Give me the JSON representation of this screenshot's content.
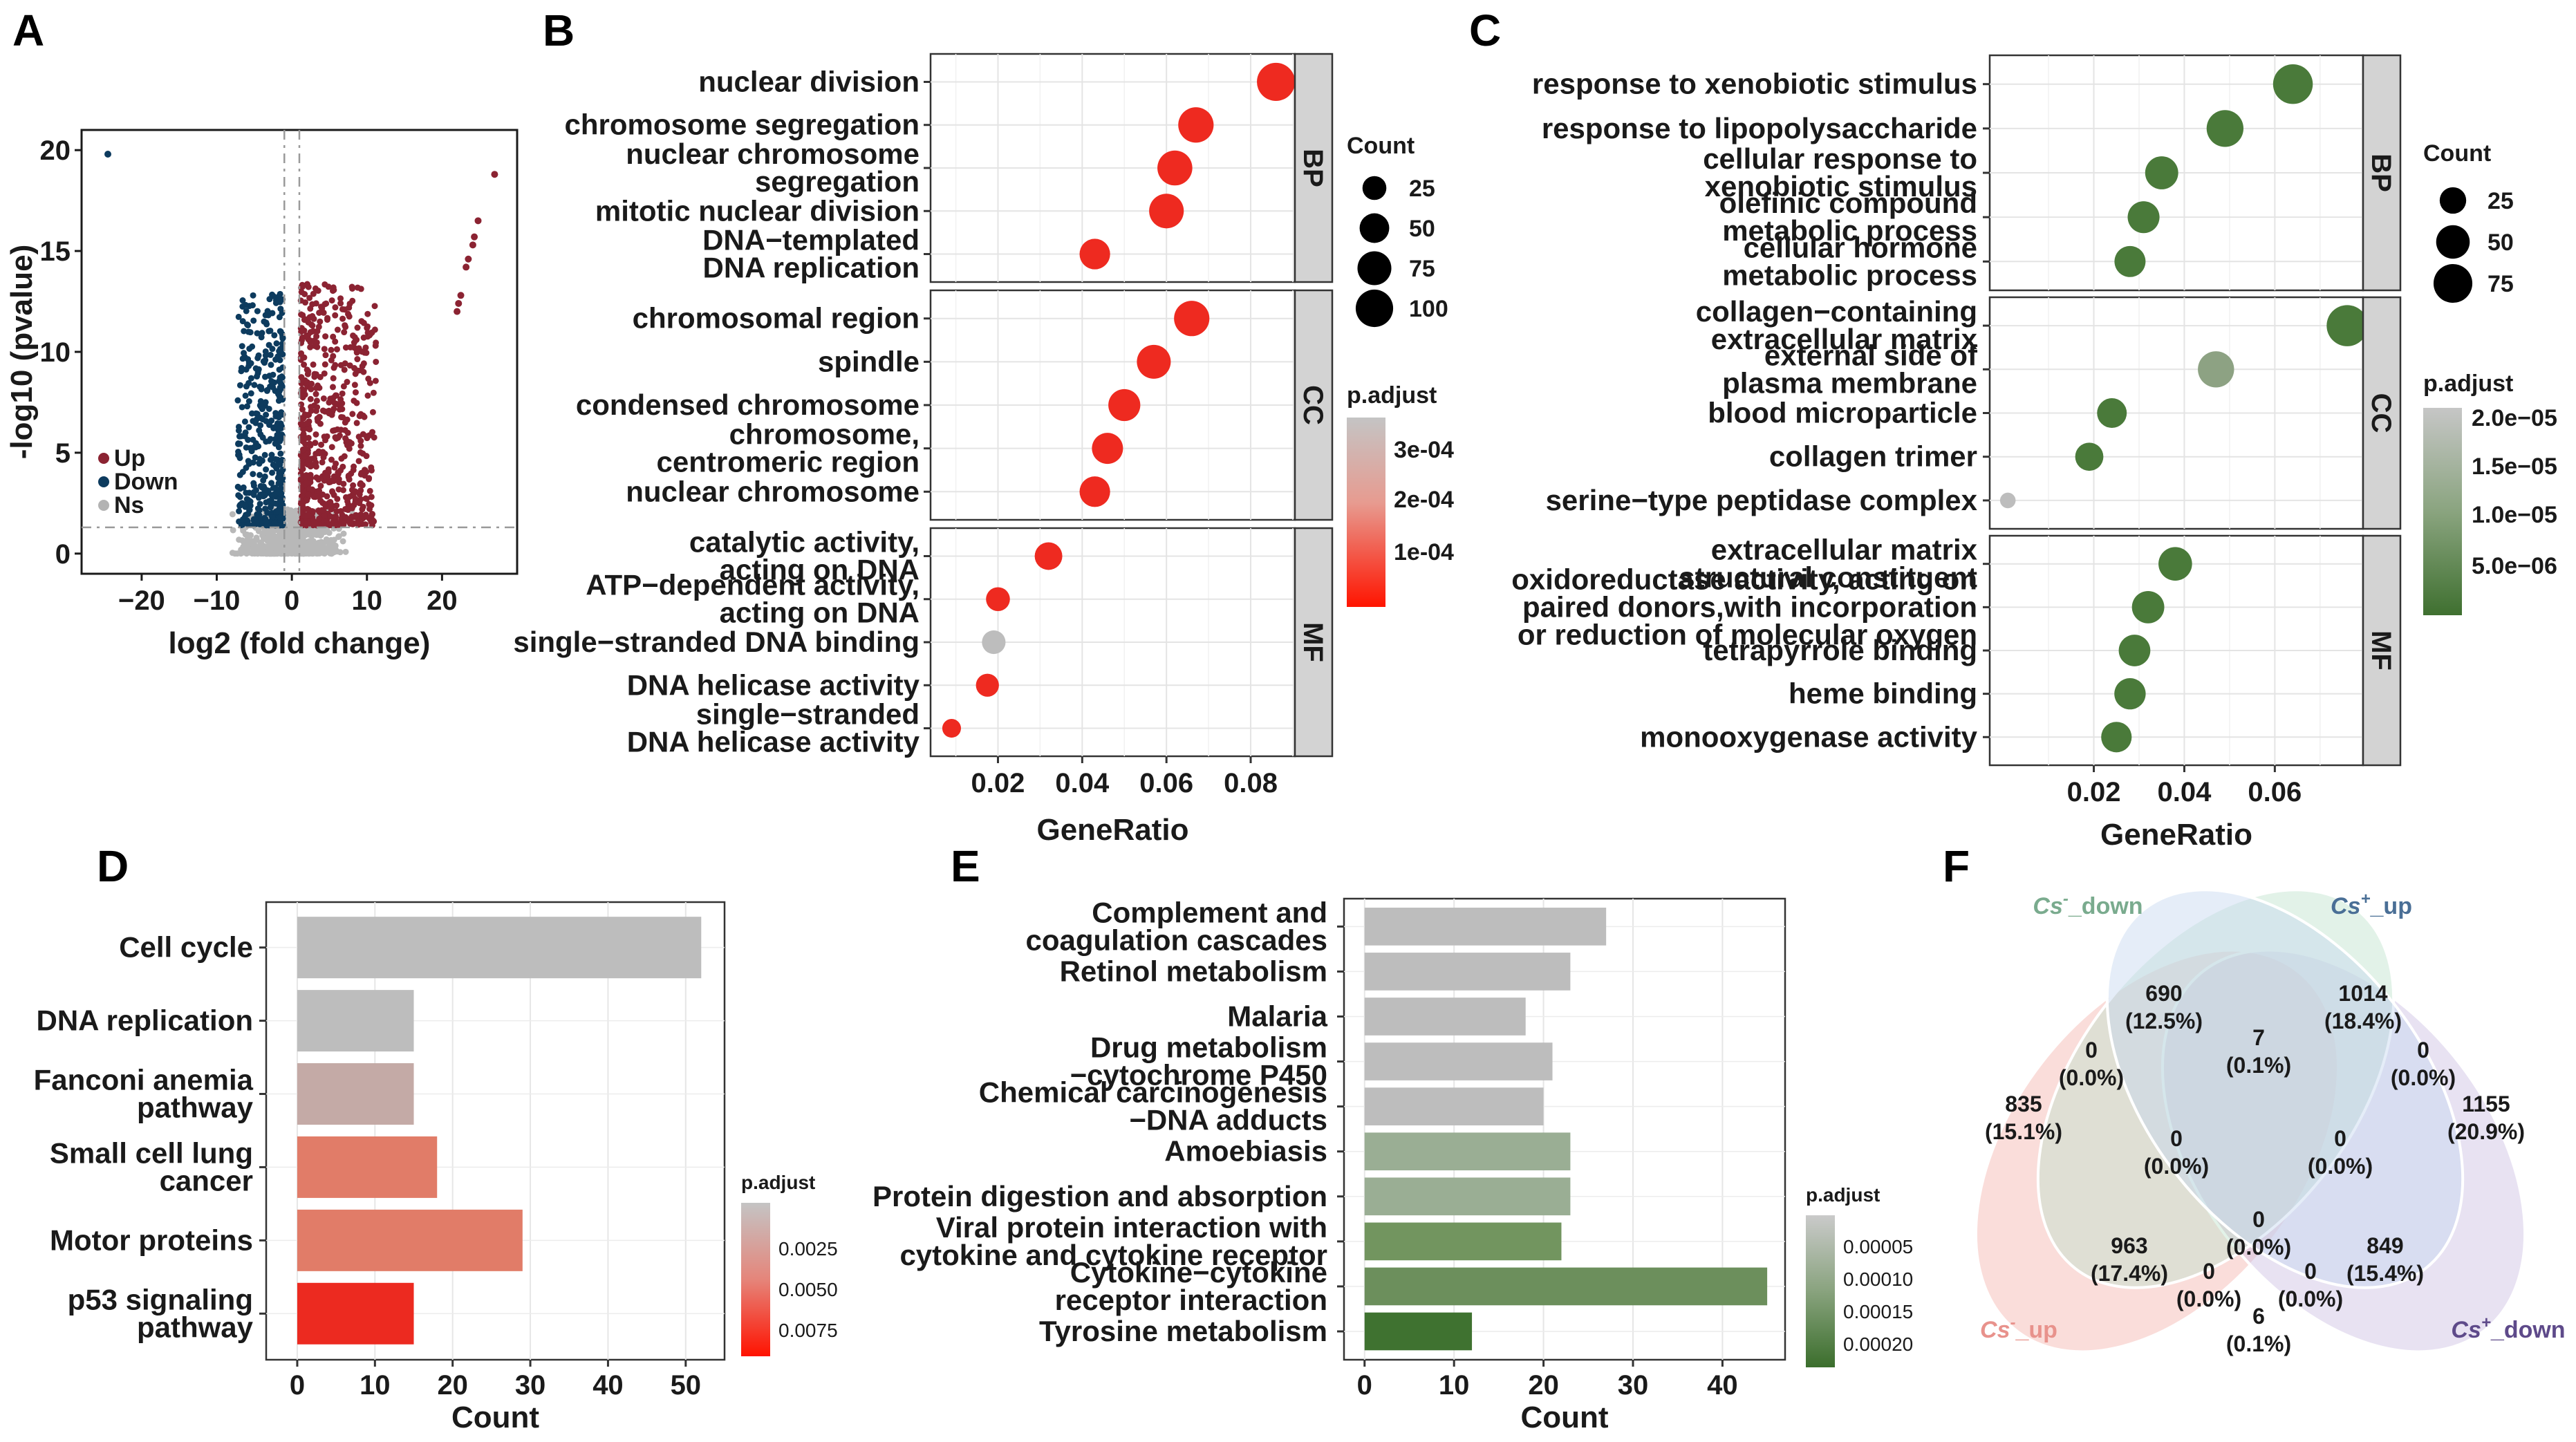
{
  "panels": {
    "a": "A",
    "b": "B",
    "c": "C",
    "d": "D",
    "e": "E",
    "f": "F"
  },
  "chart_data": [
    {
      "id": "volcano",
      "type": "scatter",
      "xlabel": "log2 (fold change)",
      "ylabel": "-log10 (pvalue)",
      "xlim": [
        -28,
        30
      ],
      "ylim": [
        -1,
        21
      ],
      "xticks": [
        "-20",
        "-10",
        "0",
        "10",
        "20"
      ],
      "yticks": [
        "0",
        "5",
        "10",
        "15",
        "20"
      ],
      "legend": [
        {
          "label": "Up",
          "color": "#8b2332"
        },
        {
          "label": "Down",
          "color": "#0d3b5e"
        },
        {
          "label": "Ns",
          "color": "#b3b3b3"
        }
      ],
      "vlines": [
        -1,
        1
      ],
      "hline": 1.3,
      "outliers_up": [
        [
          27,
          18.8
        ],
        [
          24.8,
          16.5
        ],
        [
          24.3,
          15.7
        ],
        [
          24.1,
          15.3
        ],
        [
          23.5,
          14.6
        ],
        [
          23.2,
          14.2
        ],
        [
          22.5,
          12.8
        ],
        [
          22.2,
          12.4
        ],
        [
          22.0,
          12.0
        ]
      ],
      "outliers_down": [
        [
          -24.5,
          19.8
        ]
      ]
    },
    {
      "id": "go_b",
      "type": "scatter",
      "xlabel": "GeneRatio",
      "xlim": [
        0.004,
        0.0905
      ],
      "xticks": [
        0.02,
        0.04,
        0.06,
        0.08
      ],
      "xtick_labels": [
        "0.02",
        "0.04",
        "0.06",
        "0.08"
      ],
      "size_legend": {
        "title": "Count",
        "values": [
          25,
          50,
          75,
          100
        ]
      },
      "color_legend": {
        "title": "p.adjust",
        "ticks": [
          "3e-04",
          "2e-04",
          "1e-04"
        ]
      },
      "facets": [
        {
          "name": "BP",
          "terms": [
            {
              "lines": [
                "nuclear division"
              ],
              "ratio": 0.086,
              "count": 105,
              "color": "#ee2a20"
            },
            {
              "lines": [
                "chromosome segregation"
              ],
              "ratio": 0.067,
              "count": 85,
              "color": "#ee2a20"
            },
            {
              "lines": [
                "nuclear chromosome",
                "segregation"
              ],
              "ratio": 0.062,
              "count": 82,
              "color": "#ee2a20"
            },
            {
              "lines": [
                "mitotic nuclear division"
              ],
              "ratio": 0.06,
              "count": 80,
              "color": "#ee2a20"
            },
            {
              "lines": [
                "DNA−templated",
                "DNA replication"
              ],
              "ratio": 0.043,
              "count": 55,
              "color": "#ee2a20"
            }
          ]
        },
        {
          "name": "CC",
          "terms": [
            {
              "lines": [
                "chromosomal region"
              ],
              "ratio": 0.066,
              "count": 85,
              "color": "#ee2a20"
            },
            {
              "lines": [
                "spindle"
              ],
              "ratio": 0.057,
              "count": 75,
              "color": "#ee2a20"
            },
            {
              "lines": [
                "condensed chromosome"
              ],
              "ratio": 0.05,
              "count": 63,
              "color": "#ee2a20"
            },
            {
              "lines": [
                "chromosome,",
                "centromeric region"
              ],
              "ratio": 0.046,
              "count": 58,
              "color": "#ee2a20"
            },
            {
              "lines": [
                "nuclear chromosome"
              ],
              "ratio": 0.043,
              "count": 55,
              "color": "#ee2a20"
            }
          ]
        },
        {
          "name": "MF",
          "terms": [
            {
              "lines": [
                "catalytic activity,",
                "acting on DNA"
              ],
              "ratio": 0.032,
              "count": 40,
              "color": "#ee2a20"
            },
            {
              "lines": [
                "ATP−dependent activity,",
                "acting on DNA"
              ],
              "ratio": 0.02,
              "count": 25,
              "color": "#ee2a20"
            },
            {
              "lines": [
                "single−stranded DNA binding"
              ],
              "ratio": 0.019,
              "count": 24,
              "color": "#bdbdbd"
            },
            {
              "lines": [
                "DNA helicase activity"
              ],
              "ratio": 0.0175,
              "count": 22,
              "color": "#ee2a20"
            },
            {
              "lines": [
                "single−stranded",
                "DNA helicase activity"
              ],
              "ratio": 0.009,
              "count": 11,
              "color": "#ee2a20"
            }
          ]
        }
      ]
    },
    {
      "id": "go_c",
      "type": "scatter",
      "xlabel": "GeneRatio",
      "xlim": [
        -0.003,
        0.0795
      ],
      "xticks": [
        0.02,
        0.04,
        0.06
      ],
      "xtick_labels": [
        "0.02",
        "0.04",
        "0.06"
      ],
      "size_legend": {
        "title": "Count",
        "values": [
          25,
          50,
          75
        ]
      },
      "color_legend": {
        "title": "p.adjust",
        "ticks": [
          "2.0e−05",
          "1.5e−05",
          "1.0e−05",
          "5.0e−06"
        ]
      },
      "facets": [
        {
          "name": "BP",
          "terms": [
            {
              "lines": [
                "response to xenobiotic stimulus"
              ],
              "ratio": 0.064,
              "count": 80,
              "color": "#4a7a3a"
            },
            {
              "lines": [
                "response to lipopolysaccharide"
              ],
              "ratio": 0.049,
              "count": 65,
              "color": "#4a7a3a"
            },
            {
              "lines": [
                "cellular response to",
                "xenobiotic stimulus"
              ],
              "ratio": 0.035,
              "count": 48,
              "color": "#4a7a3a"
            },
            {
              "lines": [
                "olefinic compound",
                "metabolic process"
              ],
              "ratio": 0.031,
              "count": 43,
              "color": "#4a7a3a"
            },
            {
              "lines": [
                "cellular hormone",
                "metabolic process"
              ],
              "ratio": 0.028,
              "count": 40,
              "color": "#4a7a3a"
            }
          ]
        },
        {
          "name": "CC",
          "terms": [
            {
              "lines": [
                "collagen−containing",
                "extracellular matrix"
              ],
              "ratio": 0.076,
              "count": 88,
              "color": "#4a7a3a"
            },
            {
              "lines": [
                "external side of",
                "plasma membrane"
              ],
              "ratio": 0.047,
              "count": 62,
              "color": "#8da283"
            },
            {
              "lines": [
                "blood microparticle"
              ],
              "ratio": 0.024,
              "count": 35,
              "color": "#4a7a3a"
            },
            {
              "lines": [
                "collagen trimer"
              ],
              "ratio": 0.019,
              "count": 30,
              "color": "#4a7a3a"
            },
            {
              "lines": [
                "serine−type peptidase complex"
              ],
              "ratio": 0.001,
              "count": 6,
              "color": "#bdbdbd"
            }
          ]
        },
        {
          "name": "MF",
          "terms": [
            {
              "lines": [
                "extracellular matrix",
                "structural constituent"
              ],
              "ratio": 0.038,
              "count": 50,
              "color": "#4a7a3a"
            },
            {
              "lines": [
                "oxidoreductase activity, acting on",
                "paired donors,with incorporation",
                "or reduction of molecular oxygen"
              ],
              "ratio": 0.032,
              "count": 45,
              "color": "#4a7a3a"
            },
            {
              "lines": [
                "tetrapyrrole binding"
              ],
              "ratio": 0.029,
              "count": 42,
              "color": "#4a7a3a"
            },
            {
              "lines": [
                "heme binding"
              ],
              "ratio": 0.028,
              "count": 41,
              "color": "#4a7a3a"
            },
            {
              "lines": [
                "monooxygenase activity"
              ],
              "ratio": 0.025,
              "count": 38,
              "color": "#4a7a3a"
            }
          ]
        }
      ]
    },
    {
      "id": "kegg_d",
      "type": "bar",
      "orientation": "horizontal",
      "xlabel": "Count",
      "xlim": [
        -4,
        55
      ],
      "xticks": [
        0,
        10,
        20,
        30,
        40,
        50
      ],
      "color_legend": {
        "title": "p.adjust",
        "ticks": [
          "0.0025",
          "0.0050",
          "0.0075"
        ]
      },
      "bars": [
        {
          "lines": [
            "Cell cycle"
          ],
          "value": 52,
          "color": "#bdbdbd"
        },
        {
          "lines": [
            "DNA replication"
          ],
          "value": 15,
          "color": "#bdbdbd"
        },
        {
          "lines": [
            "Fanconi anemia",
            "pathway"
          ],
          "value": 15,
          "color": "#c4aaa6"
        },
        {
          "lines": [
            "Small cell lung",
            "cancer"
          ],
          "value": 18,
          "color": "#e17c68"
        },
        {
          "lines": [
            "Motor proteins"
          ],
          "value": 29,
          "color": "#e17c68"
        },
        {
          "lines": [
            "p53 signaling",
            "pathway"
          ],
          "value": 15,
          "color": "#ec2a20"
        }
      ]
    },
    {
      "id": "kegg_e",
      "type": "bar",
      "orientation": "horizontal",
      "xlabel": "Count",
      "xlim": [
        -2.3,
        47
      ],
      "xticks": [
        0,
        10,
        20,
        30,
        40
      ],
      "color_legend": {
        "title": "p.adjust",
        "ticks": [
          "0.00005",
          "0.00010",
          "0.00015",
          "0.00020"
        ]
      },
      "bars": [
        {
          "lines": [
            "Complement and",
            "coagulation cascades"
          ],
          "value": 27,
          "color": "#bdbdbd"
        },
        {
          "lines": [
            "Retinol metabolism"
          ],
          "value": 23,
          "color": "#bdbdbd"
        },
        {
          "lines": [
            "Malaria"
          ],
          "value": 18,
          "color": "#bdbdbd"
        },
        {
          "lines": [
            "Drug metabolism",
            "−cytochrome P450"
          ],
          "value": 21,
          "color": "#bdbdbd"
        },
        {
          "lines": [
            "Chemical carcinogenesis",
            "−DNA adducts"
          ],
          "value": 20,
          "color": "#bdbdbd"
        },
        {
          "lines": [
            "Amoebiasis"
          ],
          "value": 23,
          "color": "#9aae94"
        },
        {
          "lines": [
            "Protein digestion and absorption"
          ],
          "value": 23,
          "color": "#9aae94"
        },
        {
          "lines": [
            "Viral protein interaction with",
            "cytokine and cytokine receptor"
          ],
          "value": 22,
          "color": "#72955f"
        },
        {
          "lines": [
            "Cytokine−cytokine",
            "receptor interaction"
          ],
          "value": 45,
          "color": "#6c8f5c"
        },
        {
          "lines": [
            "Tyrosine metabolism"
          ],
          "value": 12,
          "color": "#3f7230"
        }
      ]
    },
    {
      "id": "venn",
      "type": "venn",
      "sets": [
        {
          "name": "Cs",
          "sup": "-",
          "suffix": "_down",
          "color": "#7aab8e"
        },
        {
          "name": "Cs",
          "sup": "+",
          "suffix": "_up",
          "color": "#4a6f96"
        },
        {
          "name": "Cs",
          "sup": "-",
          "suffix": "_up",
          "color": "#e8928c"
        },
        {
          "name": "Cs",
          "sup": "+",
          "suffix": "_down",
          "color": "#5e4a8a"
        }
      ],
      "regions": [
        {
          "n": "690",
          "pct": "(12.5%)"
        },
        {
          "n": "1014",
          "pct": "(18.4%)"
        },
        {
          "n": "0",
          "pct": "(0.0%)"
        },
        {
          "n": "7",
          "pct": "(0.1%)"
        },
        {
          "n": "0",
          "pct": "(0.0%)"
        },
        {
          "n": "835",
          "pct": "(15.1%)"
        },
        {
          "n": "1155",
          "pct": "(20.9%)"
        },
        {
          "n": "0",
          "pct": "(0.0%)"
        },
        {
          "n": "0",
          "pct": "(0.0%)"
        },
        {
          "n": "0",
          "pct": "(0.0%)"
        },
        {
          "n": "963",
          "pct": "(17.4%)"
        },
        {
          "n": "849",
          "pct": "(15.4%)"
        },
        {
          "n": "0",
          "pct": "(0.0%)"
        },
        {
          "n": "0",
          "pct": "(0.0%)"
        },
        {
          "n": "6",
          "pct": "(0.1%)"
        }
      ]
    }
  ]
}
